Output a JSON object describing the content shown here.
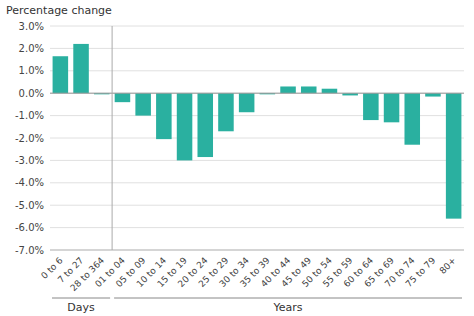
{
  "chart_data": {
    "type": "bar",
    "ylabel": "Percentage change",
    "categories": [
      "0 to 6",
      "7 to 27",
      "28 to 364",
      "01 to 04",
      "05 to 09",
      "10 to 14",
      "15 to 19",
      "20 to 24",
      "25 to 29",
      "30 to 34",
      "35 to 39",
      "40 to 44",
      "45 to 49",
      "50 to 54",
      "55 to 59",
      "60 to 64",
      "65 to 69",
      "70 to 74",
      "75 to 79",
      "80+"
    ],
    "values": [
      1.65,
      2.2,
      -0.05,
      -0.4,
      -1.0,
      -2.05,
      -3.0,
      -2.85,
      -1.7,
      -0.85,
      -0.05,
      0.3,
      0.3,
      0.2,
      -0.1,
      -1.2,
      -1.3,
      -2.3,
      -0.15,
      -5.6
    ],
    "color": "#2ab0a0",
    "ylim": [
      -7.0,
      3.0
    ],
    "yticks": [
      {
        "value": -7.0,
        "label": "-7.0%"
      },
      {
        "value": -6.0,
        "label": "-6.0%"
      },
      {
        "value": -5.0,
        "label": "-5.0%"
      },
      {
        "value": -4.0,
        "label": "-4.0%"
      },
      {
        "value": -3.0,
        "label": "-3.0%"
      },
      {
        "value": -2.0,
        "label": "-2.0%"
      },
      {
        "value": -1.0,
        "label": "-1.0%"
      },
      {
        "value": 0.0,
        "label": "0.0%"
      },
      {
        "value": 1.0,
        "label": "1.0%"
      },
      {
        "value": 2.0,
        "label": "2.0%"
      },
      {
        "value": 3.0,
        "label": "3.0%"
      }
    ],
    "grid": true,
    "annotations": [
      {
        "text": "Days",
        "from": "0 to 6",
        "to": "28 to 364"
      },
      {
        "text": "Years",
        "from": "01 to 04",
        "to": "80+"
      }
    ]
  }
}
